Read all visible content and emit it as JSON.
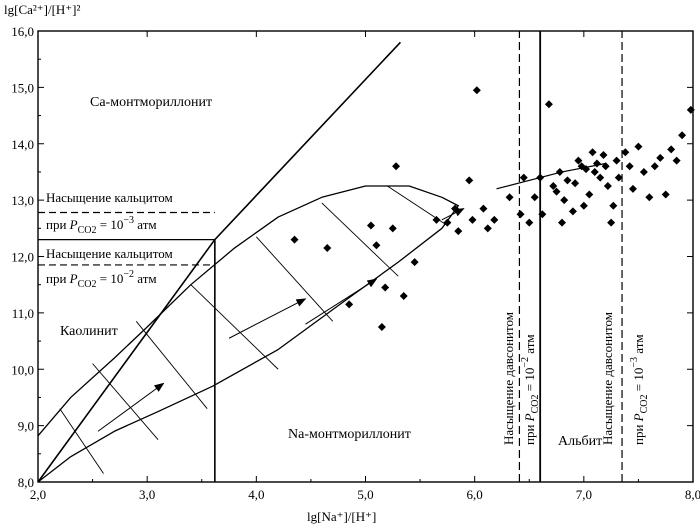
{
  "chart_data": {
    "type": "scatter",
    "ylabel": "lg[Ca²⁺]/[H⁺]²",
    "xlabel": "lg[Na⁺]/[H⁺]",
    "xlim": [
      2.0,
      8.0
    ],
    "ylim": [
      8.0,
      16.0
    ],
    "x_ticks": [
      "2,0",
      "3,0",
      "4,0",
      "5,0",
      "6,0",
      "7,0",
      "8,0"
    ],
    "y_ticks": [
      "8,0",
      "9,0",
      "10,0",
      "11,0",
      "12,0",
      "13,0",
      "14,0",
      "15,0",
      "16,0"
    ],
    "regions": {
      "ca_montmorillonite": "Ca-монтмориллонит",
      "kaolinite": "Каолинит",
      "na_montmorillonite": "Na-монтмориллонит",
      "albite": "Альбит"
    },
    "calcite_upper": {
      "title": "Насыщение кальцитом",
      "cond_prefix": "при ",
      "cond_var": "P",
      "cond_sub": "CO2",
      "cond_eq": " = 10",
      "cond_exp": "−3",
      "cond_unit": " атм",
      "y": 12.78
    },
    "calcite_lower": {
      "title": "Насыщение кальцитом",
      "cond_prefix": "при ",
      "cond_var": "P",
      "cond_sub": "CO2",
      "cond_eq": " = 10",
      "cond_exp": "−2",
      "cond_unit": " атм",
      "y": 11.85
    },
    "dawsonite_1": {
      "title": "Насыщение давсонитом",
      "cond_prefix": "при ",
      "cond_var": "P",
      "cond_sub": "CO2",
      "cond_eq": " = 10",
      "cond_exp": "−2",
      "cond_unit": " атм",
      "x": 6.41
    },
    "dawsonite_2": {
      "title": "Насыщение давсонитом",
      "cond_prefix": "при ",
      "cond_var": "P",
      "cond_sub": "CO2",
      "cond_eq": " = 10",
      "cond_exp": "−3",
      "cond_unit": " атм",
      "x": 7.35
    },
    "boundaries": {
      "kaol_ca": [
        [
          2.0,
          8.0
        ],
        [
          3.62,
          12.3
        ],
        [
          5.32,
          15.8
        ]
      ],
      "kaol_na_vertical_x": 3.62,
      "kaol_na_y_range": [
        8.0,
        12.3
      ],
      "albite_vertical_x": 6.6,
      "calcite_y_neg3": 12.78,
      "calcite_y_neg2": 11.85
    },
    "ellipse": {
      "outline": [
        [
          2.0,
          8.82
        ],
        [
          2.3,
          9.5
        ],
        [
          2.7,
          10.2
        ],
        [
          3.0,
          10.75
        ],
        [
          3.4,
          11.5
        ],
        [
          3.8,
          12.15
        ],
        [
          4.2,
          12.7
        ],
        [
          4.6,
          13.05
        ],
        [
          5.0,
          13.25
        ],
        [
          5.4,
          13.25
        ],
        [
          5.7,
          13.05
        ],
        [
          5.85,
          12.9
        ],
        [
          5.7,
          12.5
        ],
        [
          5.3,
          11.9
        ],
        [
          4.8,
          11.2
        ],
        [
          4.2,
          10.35
        ],
        [
          3.6,
          9.7
        ],
        [
          3.1,
          9.25
        ],
        [
          2.7,
          8.9
        ],
        [
          2.3,
          8.45
        ],
        [
          2.0,
          8.0
        ]
      ],
      "hatch": [
        [
          [
            2.2,
            9.3
          ],
          [
            2.6,
            8.15
          ]
        ],
        [
          [
            2.5,
            10.1
          ],
          [
            3.1,
            8.75
          ]
        ],
        [
          [
            2.9,
            10.85
          ],
          [
            3.55,
            9.3
          ]
        ],
        [
          [
            3.4,
            11.5
          ],
          [
            4.2,
            10.0
          ]
        ],
        [
          [
            4.0,
            12.35
          ],
          [
            4.7,
            10.85
          ]
        ],
        [
          [
            4.6,
            12.95
          ],
          [
            5.3,
            11.65
          ]
        ],
        [
          [
            5.2,
            13.25
          ],
          [
            5.75,
            12.55
          ]
        ]
      ],
      "arrows": [
        [
          [
            2.55,
            8.9
          ],
          [
            3.15,
            9.75
          ]
        ],
        [
          [
            3.75,
            10.55
          ],
          [
            4.45,
            11.25
          ]
        ],
        [
          [
            4.45,
            10.8
          ],
          [
            5.1,
            11.6
          ]
        ],
        [
          [
            5.7,
            12.65
          ],
          [
            5.9,
            12.85
          ]
        ]
      ]
    },
    "trend": [
      [
        6.2,
        13.2
      ],
      [
        6.8,
        13.5
      ],
      [
        7.2,
        13.65
      ]
    ],
    "points": [
      [
        4.35,
        12.3
      ],
      [
        4.65,
        12.15
      ],
      [
        4.85,
        11.15
      ],
      [
        5.05,
        12.55
      ],
      [
        5.1,
        12.2
      ],
      [
        5.15,
        10.75
      ],
      [
        5.18,
        11.45
      ],
      [
        5.25,
        12.5
      ],
      [
        5.28,
        13.6
      ],
      [
        5.35,
        11.3
      ],
      [
        5.45,
        11.9
      ],
      [
        5.65,
        12.65
      ],
      [
        5.75,
        12.6
      ],
      [
        5.82,
        12.85
      ],
      [
        5.85,
        12.45
      ],
      [
        5.95,
        13.35
      ],
      [
        5.98,
        12.65
      ],
      [
        6.02,
        14.95
      ],
      [
        6.08,
        12.85
      ],
      [
        6.12,
        12.5
      ],
      [
        6.18,
        12.65
      ],
      [
        6.32,
        13.05
      ],
      [
        6.42,
        12.75
      ],
      [
        6.45,
        13.4
      ],
      [
        6.5,
        12.6
      ],
      [
        6.55,
        13.05
      ],
      [
        6.6,
        13.4
      ],
      [
        6.62,
        12.75
      ],
      [
        6.68,
        14.7
      ],
      [
        6.72,
        13.25
      ],
      [
        6.75,
        13.15
      ],
      [
        6.78,
        13.5
      ],
      [
        6.8,
        12.6
      ],
      [
        6.82,
        13.0
      ],
      [
        6.85,
        13.35
      ],
      [
        6.9,
        12.8
      ],
      [
        6.92,
        13.3
      ],
      [
        6.95,
        13.7
      ],
      [
        6.98,
        13.6
      ],
      [
        7.0,
        12.9
      ],
      [
        7.02,
        13.55
      ],
      [
        7.05,
        13.1
      ],
      [
        7.08,
        13.85
      ],
      [
        7.1,
        13.5
      ],
      [
        7.12,
        13.65
      ],
      [
        7.15,
        13.4
      ],
      [
        7.18,
        13.8
      ],
      [
        7.2,
        13.6
      ],
      [
        7.22,
        13.25
      ],
      [
        7.25,
        12.6
      ],
      [
        7.27,
        12.9
      ],
      [
        7.3,
        13.7
      ],
      [
        7.32,
        13.4
      ],
      [
        7.38,
        13.85
      ],
      [
        7.42,
        13.6
      ],
      [
        7.45,
        13.2
      ],
      [
        7.5,
        13.95
      ],
      [
        7.55,
        13.5
      ],
      [
        7.6,
        13.05
      ],
      [
        7.65,
        13.6
      ],
      [
        7.7,
        13.75
      ],
      [
        7.75,
        13.1
      ],
      [
        7.8,
        13.9
      ],
      [
        7.85,
        13.7
      ],
      [
        7.9,
        14.15
      ],
      [
        7.98,
        14.6
      ]
    ]
  }
}
